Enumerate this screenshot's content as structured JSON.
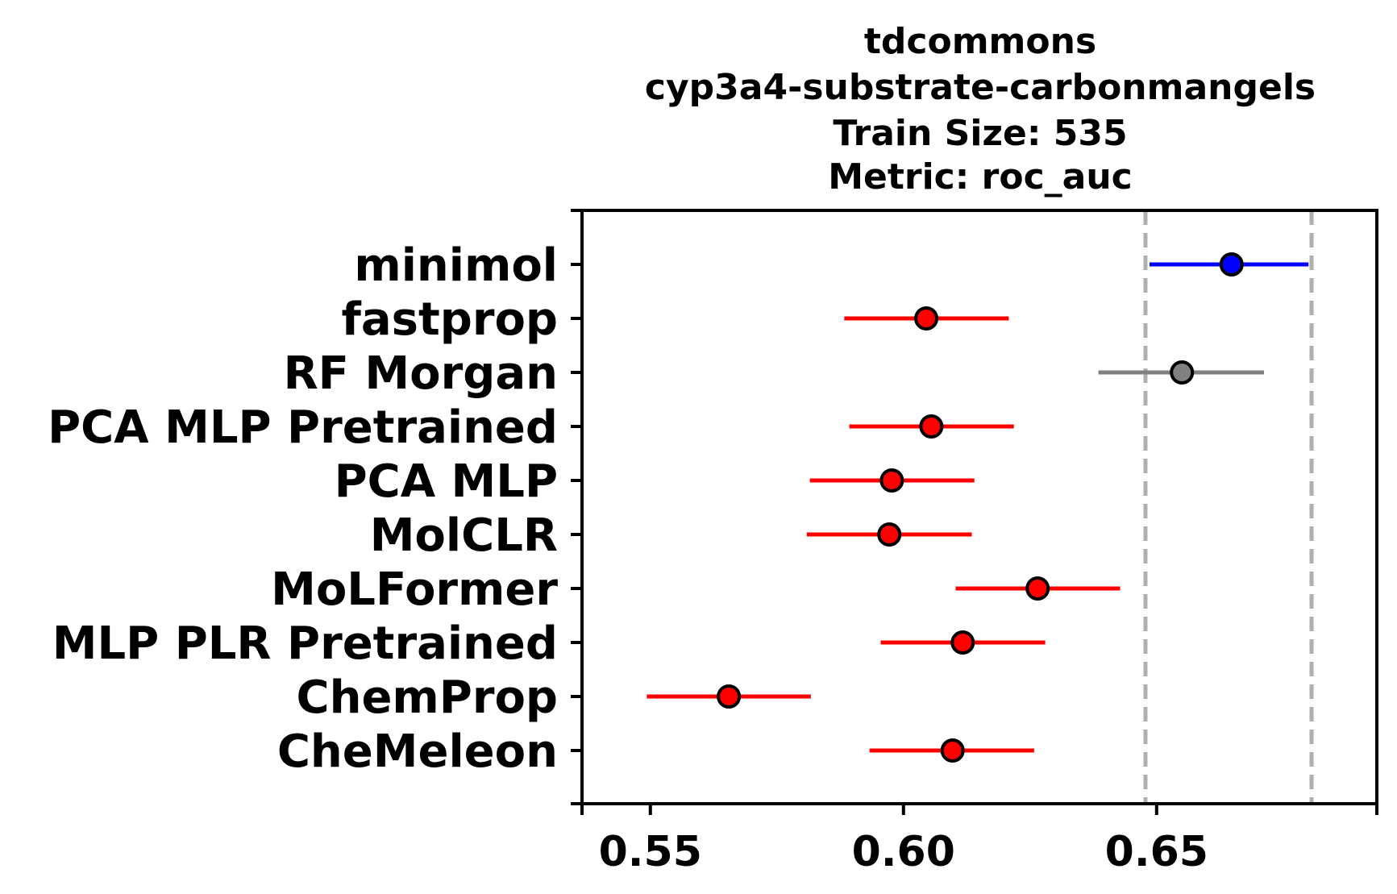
{
  "chart_data": {
    "type": "forest-plot",
    "title_lines": [
      "tdcommons",
      "cyp3a4-substrate-carbonmangels",
      "Train Size: 535",
      "Metric: roc_auc"
    ],
    "xlabel": "",
    "ylabel": "",
    "xlim": [
      0.5365,
      0.6935
    ],
    "x_ticks": [
      0.55,
      0.6,
      0.65
    ],
    "x_tick_labels": [
      "0.55",
      "0.60",
      "0.65"
    ],
    "reference_lines": [
      0.6478,
      0.6806
    ],
    "reference_line_color": "#b0b0b0",
    "series": [
      {
        "name": "minimol",
        "mean": 0.6648,
        "lower": 0.6486,
        "upper": 0.68,
        "color": "#0000ff"
      },
      {
        "name": "fastprop",
        "mean": 0.6045,
        "lower": 0.5883,
        "upper": 0.6208,
        "color": "#ff0000"
      },
      {
        "name": "RF Morgan",
        "mean": 0.655,
        "lower": 0.6385,
        "upper": 0.6712,
        "color": "#808080"
      },
      {
        "name": "PCA MLP Pretrained",
        "mean": 0.6055,
        "lower": 0.5893,
        "upper": 0.6218,
        "color": "#ff0000"
      },
      {
        "name": "PCA MLP",
        "mean": 0.5977,
        "lower": 0.5815,
        "upper": 0.614,
        "color": "#ff0000"
      },
      {
        "name": "MolCLR",
        "mean": 0.5972,
        "lower": 0.5809,
        "upper": 0.6135,
        "color": "#ff0000"
      },
      {
        "name": "MoLFormer",
        "mean": 0.6265,
        "lower": 0.6103,
        "upper": 0.6428,
        "color": "#ff0000"
      },
      {
        "name": "MLP PLR Pretrained",
        "mean": 0.6117,
        "lower": 0.5955,
        "upper": 0.628,
        "color": "#ff0000"
      },
      {
        "name": "ChemProp",
        "mean": 0.5655,
        "lower": 0.5493,
        "upper": 0.5817,
        "color": "#ff0000"
      },
      {
        "name": "CheMeleon",
        "mean": 0.6097,
        "lower": 0.5933,
        "upper": 0.6258,
        "color": "#ff0000"
      }
    ]
  }
}
